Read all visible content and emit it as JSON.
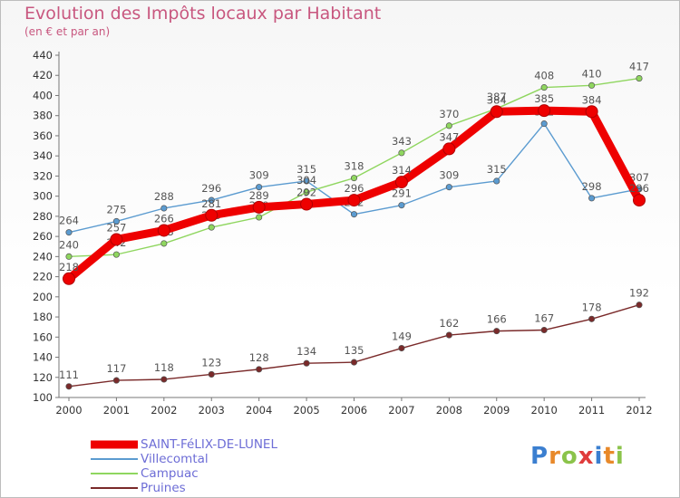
{
  "chart_data": {
    "type": "line",
    "title": "Evolution des Impôts locaux par Habitant",
    "subtitle": "(en € et par an)",
    "categories": [
      "2000",
      "2001",
      "2002",
      "2003",
      "2004",
      "2005",
      "2006",
      "2007",
      "2008",
      "2009",
      "2010",
      "2011",
      "2012"
    ],
    "ylim": [
      100,
      440
    ],
    "yticks": [
      100,
      120,
      140,
      160,
      180,
      200,
      220,
      240,
      260,
      280,
      300,
      320,
      340,
      360,
      380,
      400,
      420,
      440
    ],
    "grid": false,
    "legend_position": "bottom-left",
    "series": [
      {
        "name": "SAINT-FéLIX-DE-LUNEL",
        "color": "#ee0000",
        "values": [
          218,
          257,
          266,
          281,
          289,
          292,
          296,
          314,
          347,
          384,
          385,
          384,
          296
        ]
      },
      {
        "name": "Villecomtal",
        "color": "#5b9bd0",
        "values": [
          264,
          275,
          288,
          296,
          309,
          315,
          282,
          291,
          309,
          315,
          372,
          298,
          307
        ]
      },
      {
        "name": "Campuac",
        "color": "#8fd65f",
        "values": [
          240,
          242,
          253,
          269,
          279,
          304,
          318,
          343,
          370,
          387,
          408,
          410,
          417
        ]
      },
      {
        "name": "Pruines",
        "color": "#7a2a2a",
        "values": [
          111,
          117,
          118,
          123,
          128,
          134,
          135,
          149,
          162,
          166,
          167,
          178,
          192
        ]
      }
    ]
  },
  "logo": {
    "text": "Proxiti",
    "letters": [
      "P",
      "r",
      "o",
      "x",
      "i",
      "t",
      "i"
    ]
  }
}
